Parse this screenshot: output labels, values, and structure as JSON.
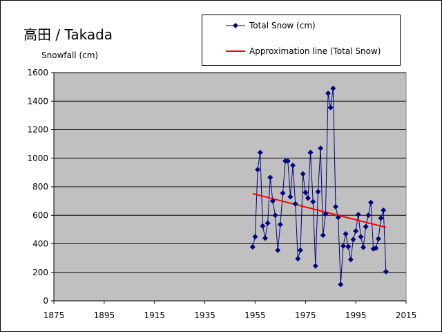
{
  "chart_data": {
    "type": "line",
    "title": "高田 / Takada",
    "ylabel": "Snowfall (cm)",
    "xlabel": "",
    "xlim": [
      1875,
      2015
    ],
    "ylim": [
      0,
      1600
    ],
    "xticks": [
      "1875",
      "1895",
      "1915",
      "1935",
      "1955",
      "1975",
      "1995",
      "2015"
    ],
    "yticks": [
      "0",
      "200",
      "400",
      "600",
      "800",
      "1000",
      "1200",
      "1400",
      "1600"
    ],
    "grid": true,
    "legend_position": "top-right",
    "series": [
      {
        "name": "Total Snow (cm)",
        "color": "#000080",
        "x": [
          1954,
          1955,
          1956,
          1957,
          1958,
          1959,
          1960,
          1961,
          1962,
          1963,
          1964,
          1965,
          1966,
          1967,
          1968,
          1969,
          1970,
          1971,
          1972,
          1973,
          1974,
          1975,
          1976,
          1977,
          1978,
          1979,
          1980,
          1981,
          1982,
          1983,
          1984,
          1985,
          1986,
          1987,
          1988,
          1989,
          1990,
          1991,
          1992,
          1993,
          1994,
          1995,
          1996,
          1997,
          1998,
          1999,
          2000,
          2001,
          2002,
          2003,
          2004,
          2005,
          2006,
          2007
        ],
        "values": [
          378,
          450,
          920,
          1040,
          525,
          440,
          545,
          865,
          700,
          600,
          355,
          535,
          755,
          980,
          980,
          730,
          950,
          680,
          295,
          355,
          890,
          760,
          720,
          1040,
          695,
          245,
          765,
          1070,
          460,
          610,
          1455,
          1355,
          1490,
          660,
          585,
          115,
          385,
          470,
          380,
          290,
          430,
          490,
          605,
          450,
          375,
          520,
          600,
          690,
          365,
          370,
          435,
          580,
          635,
          205
        ]
      },
      {
        "name": "Approximation line (Total Snow)",
        "color": "#ff0000",
        "x": [
          1954,
          2007
        ],
        "values": [
          752,
          515
        ]
      }
    ]
  }
}
